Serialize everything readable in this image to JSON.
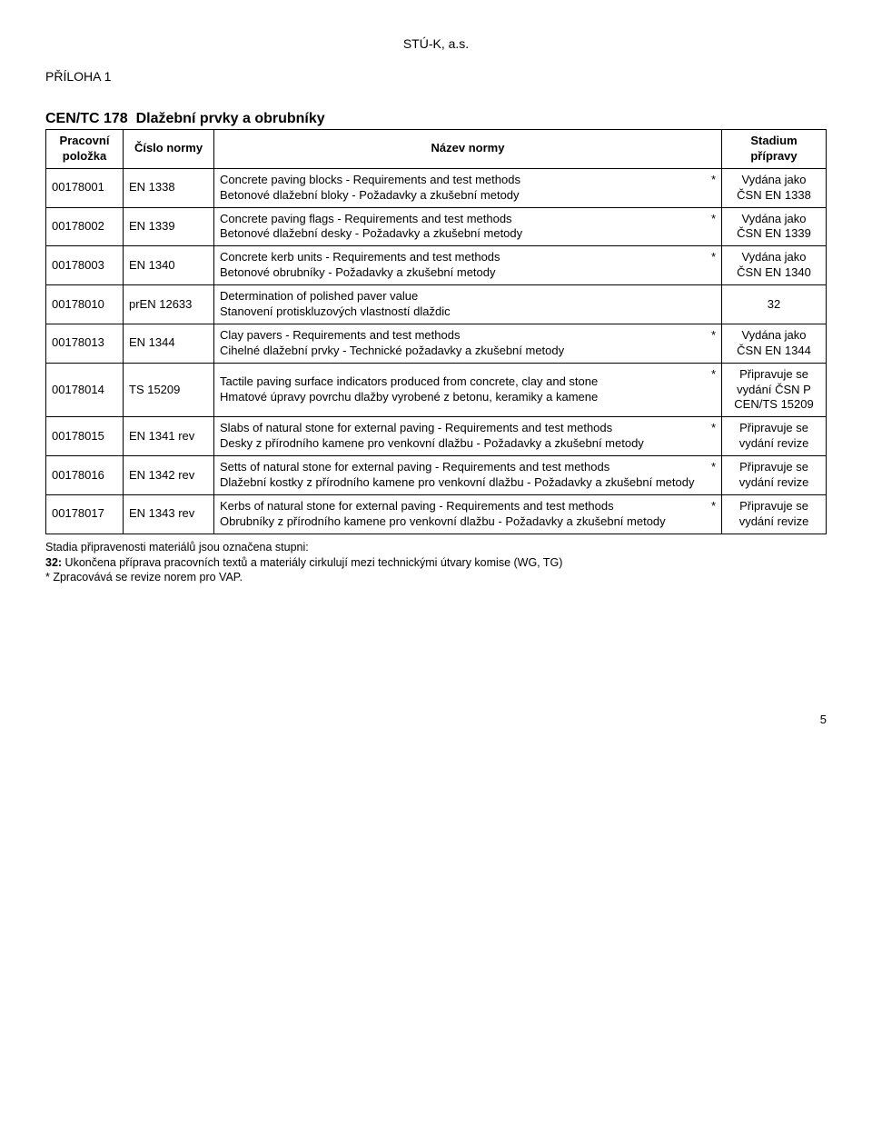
{
  "header_top": "STÚ-K, a.s.",
  "attachment_label": "PŘÍLOHA 1",
  "group": {
    "code": "CEN/TC 178",
    "title": "Dlažební prvky a obrubníky"
  },
  "col_headers": {
    "c1": "Pracovní položka",
    "c2": "Číslo normy",
    "c3": "Název normy",
    "c4": "Stadium přípravy"
  },
  "rows": [
    {
      "pos": "00178001",
      "norm": "EN 1338",
      "star": "*",
      "name_en": "Concrete paving blocks - Requirements and test methods",
      "name_cz": "Betonové dlažební bloky - Požadavky a zkušební metody",
      "stage": "Vydána jako ČSN EN 1338"
    },
    {
      "pos": "00178002",
      "norm": "EN 1339",
      "star": "*",
      "name_en": "Concrete paving flags - Requirements and test methods",
      "name_cz": "Betonové dlažební desky - Požadavky a zkušební metody",
      "stage": "Vydána jako ČSN EN 1339"
    },
    {
      "pos": "00178003",
      "norm": "EN 1340",
      "star": "*",
      "name_en": "Concrete kerb units - Requirements and test methods",
      "name_cz": "Betonové obrubníky - Požadavky a zkušební metody",
      "stage": "Vydána jako ČSN EN 1340"
    },
    {
      "pos": "00178010",
      "norm": "prEN 12633",
      "star": "",
      "name_en": "Determination of polished paver value",
      "name_cz": "Stanovení protiskluzových vlastností dlaždic",
      "stage": "32"
    },
    {
      "pos": "00178013",
      "norm": "EN 1344",
      "star": "*",
      "name_en": "Clay pavers - Requirements and test methods",
      "name_cz": "Cihelné dlažební prvky - Technické požadavky a zkušební metody",
      "stage": "Vydána jako ČSN EN 1344"
    },
    {
      "pos": "00178014",
      "norm": "TS 15209",
      "star": "*",
      "name_en": "Tactile paving surface indicators produced from concrete, clay and stone",
      "name_cz": "Hmatové úpravy povrchu dlažby vyrobené z betonu, keramiky a kamene",
      "stage": "Připravuje se vydání ČSN P CEN/TS 15209"
    },
    {
      "pos": "00178015",
      "norm": "EN 1341 rev",
      "star": "*",
      "name_en": "Slabs of natural stone for external paving - Requirements and test methods",
      "name_cz": "Desky z přírodního kamene pro venkovní dlažbu - Požadavky a zkušební metody",
      "stage": "Připravuje se vydání revize"
    },
    {
      "pos": "00178016",
      "norm": "EN 1342 rev",
      "star": "*",
      "name_en": "Setts of natural stone for external paving - Requirements and test methods",
      "name_cz": "Dlažební kostky z přírodního kamene pro venkovní dlažbu - Požadavky a zkušební metody",
      "stage": "Připravuje se vydání revize"
    },
    {
      "pos": "00178017",
      "norm": "EN 1343 rev",
      "star": "*",
      "name_en": "Kerbs of natural stone for external paving - Requirements and test methods",
      "name_cz": "Obrubníky z přírodního kamene pro venkovní dlažbu - Požadavky a zkušební metody",
      "stage": "Připravuje se vydání revize"
    }
  ],
  "notes": {
    "line1": "Stadia připravenosti materiálů jsou označena stupni:",
    "line2_bold": "32:",
    "line2_rest": " Ukončena příprava pracovních textů a materiály cirkulují mezi technickými útvary komise (WG, TG)",
    "line3": "* Zpracovává se revize norem pro VAP."
  },
  "page_number": "5"
}
